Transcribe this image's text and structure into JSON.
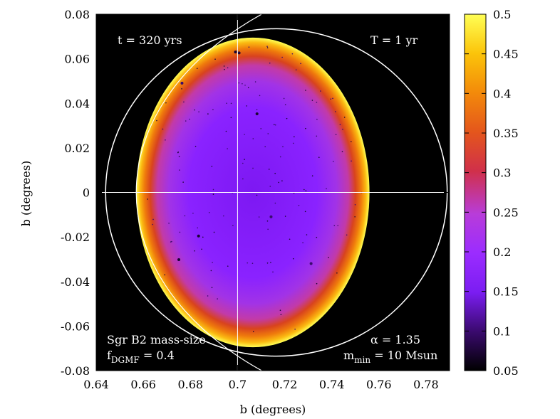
{
  "chart_data": {
    "type": "heatmap",
    "xlabel": "b (degrees)",
    "ylabel": "b (degrees)",
    "xlim": [
      0.64,
      0.79
    ],
    "ylim": [
      -0.08,
      0.08
    ],
    "x_ticks": [
      "0.64",
      "0.66",
      "0.68",
      "0.7",
      "0.72",
      "0.74",
      "0.76",
      "0.78"
    ],
    "x_tick_values": [
      0.64,
      0.66,
      0.68,
      0.7,
      0.72,
      0.74,
      0.76,
      0.78
    ],
    "y_ticks": [
      "0.08",
      "0.06",
      "0.04",
      "0.02",
      "0",
      "-0.02",
      "-0.04",
      "-0.06",
      "-0.08"
    ],
    "y_tick_values": [
      0.08,
      0.06,
      0.04,
      0.02,
      0,
      -0.02,
      -0.04,
      -0.06,
      -0.08
    ],
    "colorbar": {
      "range": [
        0.05,
        0.5
      ],
      "ticks": [
        "0.5",
        "0.45",
        "0.4",
        "0.35",
        "0.3",
        "0.25",
        "0.2",
        "0.15",
        "0.1",
        "0.05"
      ],
      "tick_values": [
        0.5,
        0.45,
        0.4,
        0.35,
        0.3,
        0.25,
        0.2,
        0.15,
        0.1,
        0.05
      ],
      "colormap": [
        "#000000",
        "#3a0a6e",
        "#7b1df2",
        "#9b2cff",
        "#b83cd9",
        "#d0304a",
        "#e4561c",
        "#f38a0a",
        "#fbc40a",
        "#ffff55"
      ]
    },
    "ellipse": {
      "center": [
        0.7065,
        0.0
      ],
      "semi_axis_x": 0.0495,
      "semi_axis_y": 0.0695
    },
    "outer_circle": {
      "center": [
        0.7165,
        0.0
      ],
      "semi_axis_x": 0.0725,
      "semi_axis_y": 0.0735
    },
    "crosshair": {
      "x": 0.7,
      "y": 0.0
    },
    "annotations": {
      "time": "t = 320 yrs",
      "period": "T = 1 yr",
      "model_line1": "Sgr B2 mass-size",
      "fdgmf_base": "f",
      "fdgmf_sub": "DGMF",
      "fdgmf_value": " = 0.4",
      "alpha": "α = 1.35",
      "mmin_base": "m",
      "mmin_sub": "min",
      "mmin_value": " = 10 Msun"
    },
    "colors": {
      "plot_background": "#000000",
      "interior": "#8a1cf5",
      "edge": "#ffff40",
      "lines": "#ffffff"
    }
  }
}
